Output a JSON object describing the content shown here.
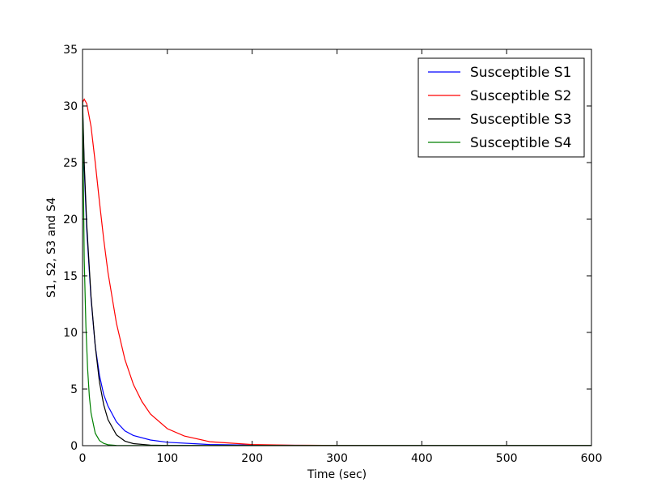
{
  "chart_data": {
    "type": "line",
    "xlabel": "Time (sec)",
    "ylabel": "S1, S2, S3 and S4",
    "xlim": [
      0,
      600
    ],
    "ylim": [
      0,
      35
    ],
    "x_ticks": [
      0,
      100,
      200,
      300,
      400,
      500,
      600
    ],
    "y_ticks": [
      0,
      5,
      10,
      15,
      20,
      25,
      30,
      35
    ],
    "x_tick_labels": [
      "0",
      "100",
      "200",
      "300",
      "400",
      "500",
      "600"
    ],
    "y_tick_labels": [
      "0",
      "5",
      "10",
      "15",
      "20",
      "25",
      "30",
      "35"
    ],
    "grid": false,
    "legend_position": "top-right",
    "series": [
      {
        "name": "Susceptible S1",
        "color": "#0000ff",
        "x": [
          0,
          2,
          5,
          10,
          15,
          20,
          25,
          30,
          40,
          50,
          60,
          80,
          100,
          150,
          200,
          300,
          400,
          500,
          600
        ],
        "y": [
          30,
          24.5,
          19,
          13,
          8.8,
          6.2,
          4.5,
          3.5,
          2.1,
          1.3,
          0.9,
          0.5,
          0.3,
          0.1,
          0.05,
          0.02,
          0.01,
          0.01,
          0.01
        ]
      },
      {
        "name": "Susceptible S2",
        "color": "#ff0000",
        "x": [
          0,
          2,
          5,
          10,
          15,
          20,
          25,
          30,
          40,
          50,
          60,
          70,
          80,
          100,
          120,
          150,
          200,
          250,
          300,
          400,
          500,
          600
        ],
        "y": [
          30.3,
          30.6,
          30.2,
          28.2,
          25,
          21.5,
          18.2,
          15.3,
          10.8,
          7.6,
          5.4,
          3.9,
          2.8,
          1.5,
          0.85,
          0.35,
          0.1,
          0.04,
          0.02,
          0.01,
          0.01,
          0.01
        ]
      },
      {
        "name": "Susceptible S3",
        "color": "#000000",
        "x": [
          0,
          2,
          5,
          10,
          15,
          20,
          25,
          30,
          40,
          50,
          60,
          80,
          100,
          150,
          200,
          300,
          400,
          500,
          600
        ],
        "y": [
          30.5,
          25,
          19.5,
          13.2,
          8.8,
          5.6,
          3.6,
          2.3,
          0.95,
          0.4,
          0.18,
          0.05,
          0.02,
          0.01,
          0.01,
          0.01,
          0.01,
          0.01,
          0.01
        ]
      },
      {
        "name": "Susceptible S4",
        "color": "#008000",
        "x": [
          0,
          2,
          4,
          6,
          8,
          10,
          15,
          20,
          25,
          30,
          40,
          50,
          60,
          100,
          200,
          300,
          400,
          500,
          600
        ],
        "y": [
          30.3,
          16.5,
          10.5,
          6.8,
          4.4,
          2.9,
          1.1,
          0.45,
          0.2,
          0.08,
          0.02,
          0.01,
          0.01,
          0.01,
          0.01,
          0.01,
          0.01,
          0.01,
          0.01
        ]
      }
    ]
  }
}
